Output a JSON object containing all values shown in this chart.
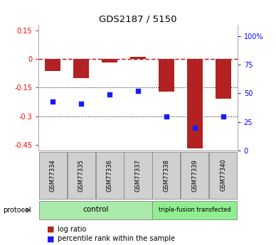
{
  "title": "GDS2187 / 5150",
  "samples": [
    "GSM77334",
    "GSM77335",
    "GSM77336",
    "GSM77337",
    "GSM77338",
    "GSM77339",
    "GSM77340"
  ],
  "log_ratio": [
    -0.062,
    -0.1,
    -0.02,
    0.012,
    -0.17,
    -0.47,
    -0.21
  ],
  "percentile_rank": [
    43,
    41,
    49,
    52,
    30,
    20,
    30
  ],
  "ylim_left": [
    -0.48,
    0.18
  ],
  "ylim_right": [
    0,
    110
  ],
  "yticks_left": [
    0.15,
    0.0,
    -0.15,
    -0.3,
    -0.45
  ],
  "ytick_labels_left": [
    "0.15",
    "0",
    "-0.15",
    "-0.3",
    "-0.45"
  ],
  "yticks_right": [
    100,
    75,
    50,
    25,
    0
  ],
  "ytick_labels_right": [
    "100%",
    "75",
    "50",
    "25",
    "0"
  ],
  "bar_color": "#B22222",
  "dot_color": "#1a1aff",
  "bg_color": "#FFFFFF",
  "zero_line_color": "#CC0000",
  "control_label": "control",
  "transfected_label": "triple-fusion transfected",
  "protocol_label": "protocol",
  "legend_logratio": "log ratio",
  "legend_percentile": "percentile rank within the sample",
  "bar_width": 0.55,
  "dot_size": 22,
  "control_green": "#aaeaaa",
  "transfected_green": "#90EE90",
  "sample_box_color": "#D0D0D0"
}
